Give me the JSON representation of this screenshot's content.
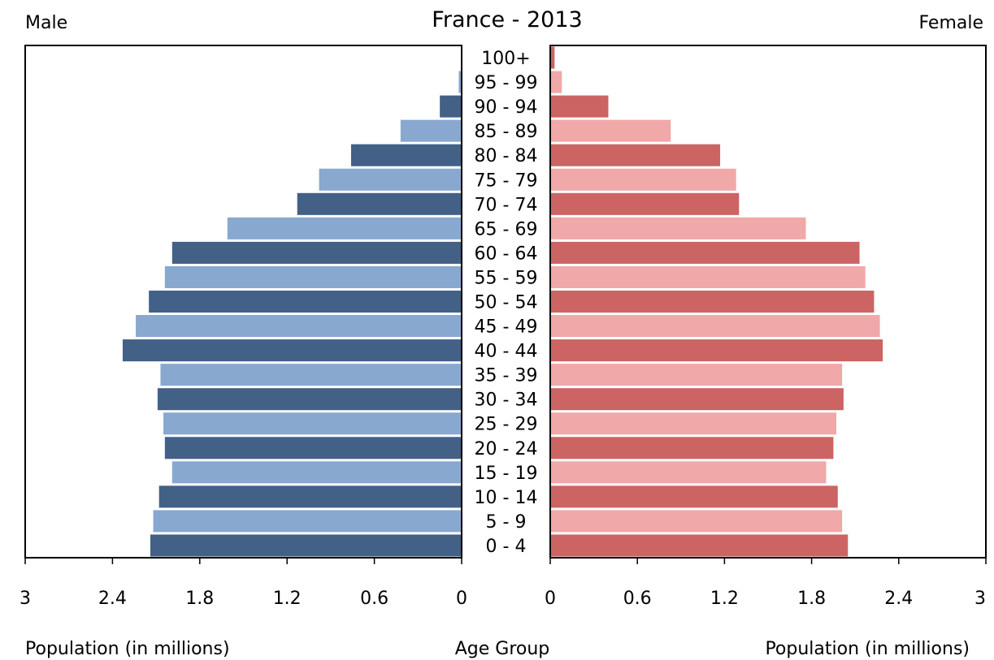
{
  "chart_data": {
    "type": "bar",
    "orientation": "horizontal",
    "layout": "population-pyramid",
    "title": "France - 2013",
    "left_label": "Male",
    "right_label": "Female",
    "xlabel_left": "Population (in millions)",
    "xlabel_center": "Age Group",
    "xlabel_right": "Population (in millions)",
    "xlim": [
      0,
      3
    ],
    "ticks": [
      "0",
      "0.6",
      "1.2",
      "1.8",
      "2.4",
      "3"
    ],
    "tick_values": [
      0,
      0.6,
      1.2,
      1.8,
      2.4,
      3
    ],
    "categories": [
      "0 - 4",
      "5 - 9",
      "10 - 14",
      "15 - 19",
      "20 - 24",
      "25 - 29",
      "30 - 34",
      "35 - 39",
      "40 - 44",
      "45 - 49",
      "50 - 54",
      "55 - 59",
      "60 - 64",
      "65 - 69",
      "70 - 74",
      "75 - 79",
      "80 - 84",
      "85 - 89",
      "90 - 94",
      "95 - 99",
      "100+"
    ],
    "series": [
      {
        "name": "Male",
        "side": "left",
        "colors": [
          "#436087",
          "#88a8cf"
        ],
        "values": [
          2.14,
          2.12,
          2.08,
          1.99,
          2.04,
          2.05,
          2.09,
          2.07,
          2.33,
          2.24,
          2.15,
          2.04,
          1.99,
          1.61,
          1.13,
          0.98,
          0.76,
          0.42,
          0.15,
          0.02,
          0.005
        ]
      },
      {
        "name": "Female",
        "side": "right",
        "colors": [
          "#cc6464",
          "#f0a8a8"
        ],
        "values": [
          2.05,
          2.01,
          1.98,
          1.9,
          1.95,
          1.97,
          2.02,
          2.01,
          2.29,
          2.27,
          2.23,
          2.17,
          2.13,
          1.76,
          1.3,
          1.28,
          1.17,
          0.83,
          0.4,
          0.08,
          0.03
        ]
      }
    ],
    "grid": false,
    "legend": "none"
  }
}
